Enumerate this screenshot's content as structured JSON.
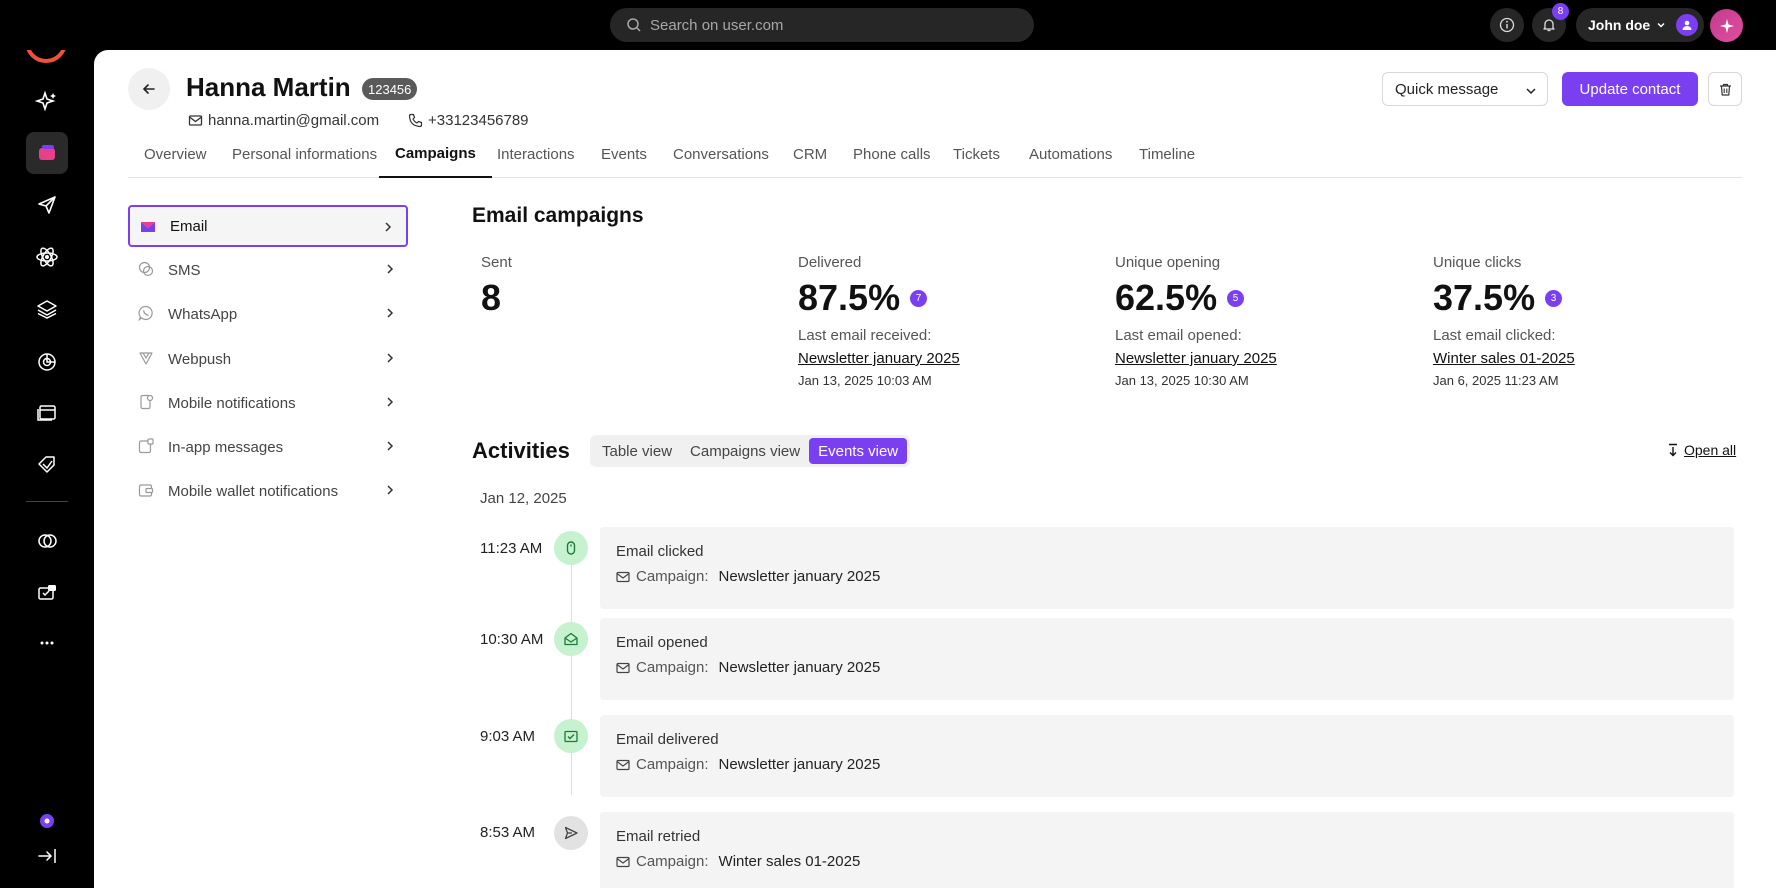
{
  "topbar": {
    "search_placeholder": "Search on user.com",
    "notification_count": "8",
    "user_name": "John doe"
  },
  "contact": {
    "name": "Hanna Martin",
    "id": "123456",
    "email": "hanna.martin@gmail.com",
    "phone": "+33123456789"
  },
  "actions": {
    "quick_message": "Quick message",
    "update_contact": "Update contact"
  },
  "tabs": [
    {
      "label": "Overview"
    },
    {
      "label": "Personal informations"
    },
    {
      "label": "Campaigns",
      "active": true
    },
    {
      "label": "Interactions"
    },
    {
      "label": "Events"
    },
    {
      "label": "Conversations"
    },
    {
      "label": "CRM"
    },
    {
      "label": "Phone calls"
    },
    {
      "label": "Tickets"
    },
    {
      "label": "Automations"
    },
    {
      "label": "Timeline"
    }
  ],
  "channels": [
    {
      "label": "Email",
      "icon": "email-icon",
      "active": true
    },
    {
      "label": "SMS",
      "icon": "sms-icon"
    },
    {
      "label": "WhatsApp",
      "icon": "whatsapp-icon"
    },
    {
      "label": "Webpush",
      "icon": "webpush-icon"
    },
    {
      "label": "Mobile notifications",
      "icon": "mobile-notification-icon"
    },
    {
      "label": "In-app messages",
      "icon": "in-app-icon"
    },
    {
      "label": "Mobile wallet notifications",
      "icon": "wallet-icon"
    }
  ],
  "email_campaigns": {
    "title": "Email campaigns",
    "stats": [
      {
        "label": "Sent",
        "value": "8"
      },
      {
        "label": "Delivered",
        "value": "87.5%",
        "badge": "7",
        "sub_label": "Last email received:",
        "link": "Newsletter january 2025",
        "date": "Jan 13, 2025 10:03 AM"
      },
      {
        "label": "Unique opening",
        "value": "62.5%",
        "badge": "5",
        "sub_label": "Last email opened:",
        "link": "Newsletter january 2025",
        "date": "Jan 13, 2025 10:30 AM"
      },
      {
        "label": "Unique clicks",
        "value": "37.5%",
        "badge": "3",
        "sub_label": "Last email clicked:",
        "link": "Winter sales 01-2025",
        "date": "Jan 6, 2025 11:23 AM"
      }
    ]
  },
  "activities": {
    "title": "Activities",
    "views": [
      {
        "label": "Table view"
      },
      {
        "label": "Campaigns view"
      },
      {
        "label": "Events view",
        "active": true
      }
    ],
    "open_all": "Open all",
    "date": "Jan 12, 2025",
    "campaign_label": "Campaign:",
    "events": [
      {
        "time": "11:23 AM",
        "title": "Email clicked",
        "campaign": "Newsletter january 2025",
        "icon": "mouse-icon"
      },
      {
        "time": "10:30 AM",
        "title": "Email opened",
        "campaign": "Newsletter january 2025",
        "icon": "envelope-open-icon"
      },
      {
        "time": "9:03 AM",
        "title": "Email delivered",
        "campaign": "Newsletter january 2025",
        "icon": "envelope-check-icon"
      },
      {
        "time": "8:53 AM",
        "title": "Email retried",
        "campaign": "Winter sales 01-2025",
        "icon": "send-icon"
      }
    ]
  },
  "colors": {
    "accent": "#7b3ff2",
    "logo": "#f0503c",
    "event_success": "#c6f2d0"
  }
}
